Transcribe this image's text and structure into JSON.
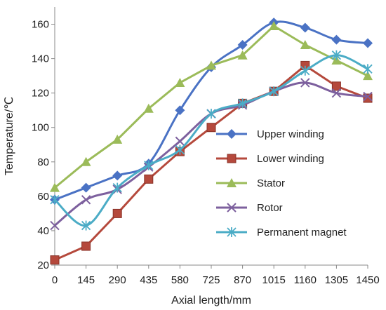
{
  "chart_data": {
    "type": "line",
    "title": "",
    "xlabel": "Axial length/mm",
    "ylabel": "Temperature/℃",
    "categories": [
      "0",
      "145",
      "290",
      "435",
      "580",
      "725",
      "870",
      "1015",
      "1160",
      "1305",
      "1450"
    ],
    "ylim": [
      20,
      170
    ],
    "yticks": [
      20,
      40,
      60,
      80,
      100,
      120,
      140,
      160
    ],
    "grid": false,
    "legend_position": "right",
    "series": [
      {
        "name": "Upper winding",
        "values": [
          58,
          65,
          72,
          79,
          110,
          135,
          148,
          161,
          158,
          151,
          149
        ],
        "color": "#4a72c4",
        "marker": "diamond",
        "smooth": true
      },
      {
        "name": " Lower winding",
        "values": [
          23,
          31,
          50,
          70,
          86,
          100,
          114,
          121,
          136,
          124,
          117
        ],
        "color": "#b5493c",
        "marker": "square",
        "smooth": false
      },
      {
        "name": "Stator",
        "values": [
          65,
          80,
          93,
          111,
          126,
          136,
          142,
          159,
          148,
          139,
          130
        ],
        "color": "#9bbb59",
        "marker": "triangle",
        "smooth": false
      },
      {
        "name": "Rotor",
        "values": [
          43,
          58,
          64,
          77,
          92,
          108,
          113,
          121,
          126,
          120,
          118
        ],
        "color": "#7d609e",
        "marker": "x",
        "smooth": true
      },
      {
        "name": "Permanent magnet",
        "values": [
          58,
          43,
          65,
          78,
          87,
          108,
          114,
          121,
          133,
          142,
          134
        ],
        "color": "#4bacc6",
        "marker": "star",
        "smooth": true
      }
    ]
  }
}
